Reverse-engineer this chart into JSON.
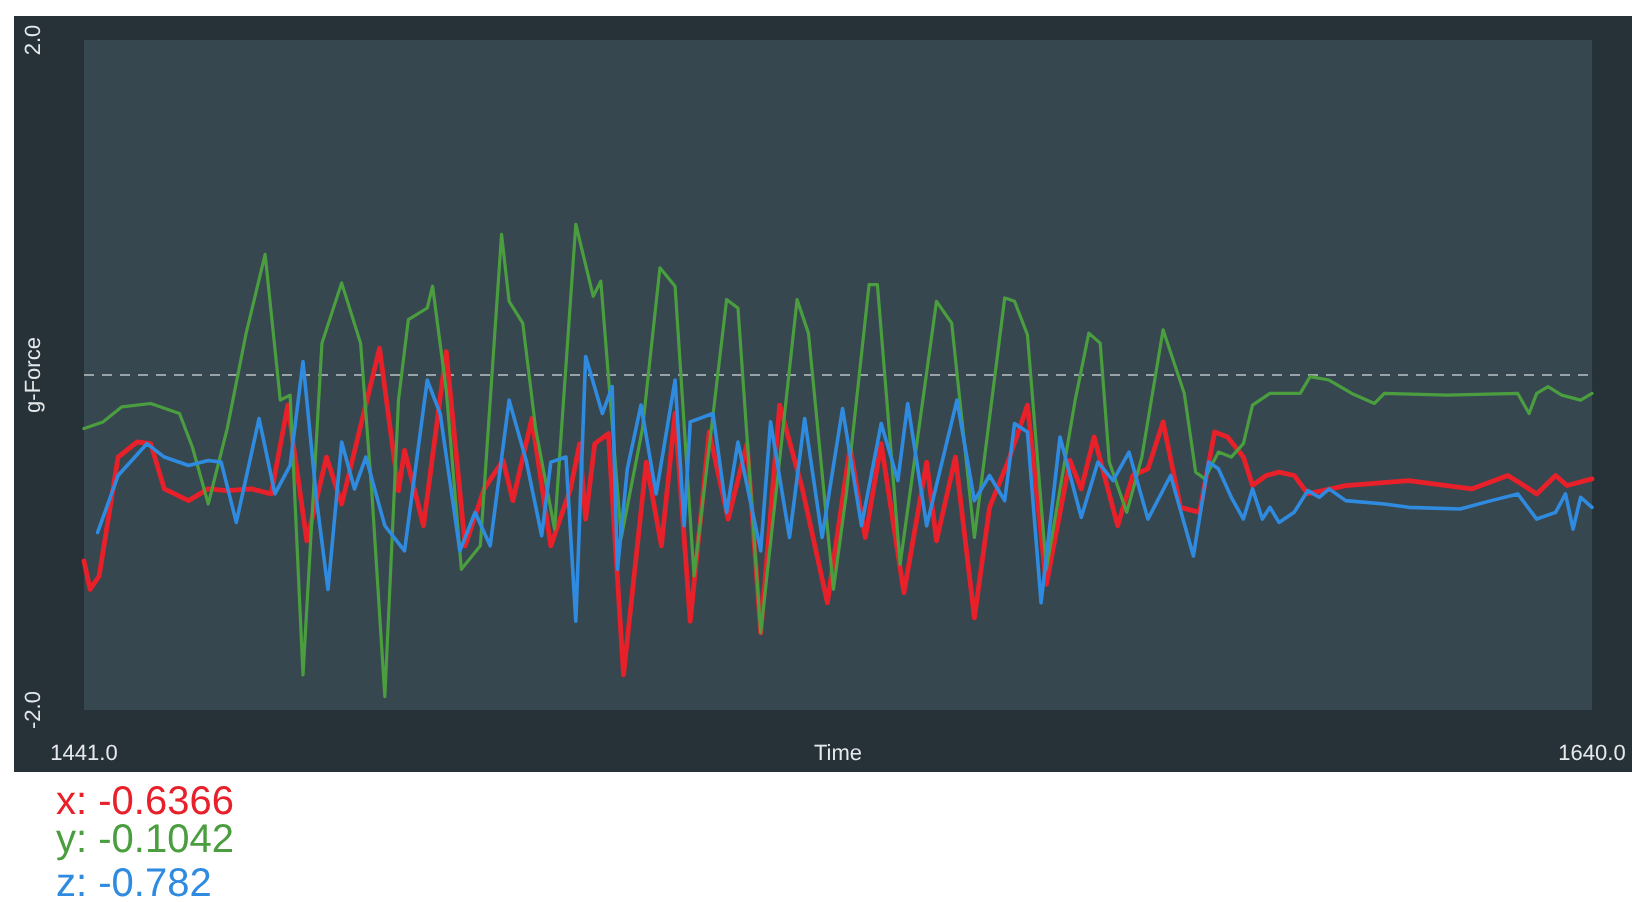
{
  "chart_data": {
    "type": "line",
    "xlabel": "Time",
    "ylabel": "g-Force",
    "xlim": [
      1441,
      1640
    ],
    "xticks": [
      {
        "value": 1441,
        "label": "1441.0"
      },
      {
        "value": 1640,
        "label": "1640.0"
      }
    ],
    "ylim": [
      -2,
      2
    ],
    "yticks": [
      {
        "value": 2,
        "label": "2.0"
      },
      {
        "value": -2,
        "label": "-2.0"
      }
    ],
    "grid": false,
    "legend": "bottom left",
    "marker": "none",
    "line_style": "solid",
    "ref_lines": [
      {
        "axis": "y",
        "value": 0,
        "color": "#9aa3a8",
        "line_style": "dashed"
      }
    ],
    "series": [
      {
        "name": "x: -0.6366",
        "color": "#e8202a",
        "x": [
          1441.0,
          1441.8,
          1443.0,
          1445.5,
          1448.0,
          1449.8,
          1451.6,
          1454.8,
          1457.4,
          1459.9,
          1463.1,
          1465.7,
          1467.9,
          1470.4,
          1473.0,
          1475.0,
          1480.0,
          1482.5,
          1483.3,
          1485.8,
          1488.8,
          1491.3,
          1493.8,
          1496.3,
          1497.6,
          1500.1,
          1502.6,
          1505.2,
          1506.4,
          1507.2,
          1508.4,
          1510.2,
          1512.2,
          1515.2,
          1517.2,
          1519.0,
          1521.0,
          1523.5,
          1526.0,
          1528.5,
          1530.3,
          1532.8,
          1535.8,
          1539.1,
          1542.1,
          1544.1,
          1546.2,
          1549.2,
          1552.2,
          1553.5,
          1556.0,
          1558.5,
          1560.5,
          1563.0,
          1565.5,
          1568.0,
          1571.1,
          1572.6,
          1574.3,
          1577.4,
          1579.4,
          1581.4,
          1583.4,
          1585.7,
          1588.2,
          1590.2,
          1591.9,
          1594.0,
          1595.2,
          1597.0,
          1598.7,
          1600.7,
          1602.5,
          1607.5,
          1615.8,
          1624.1,
          1628.9,
          1631.7,
          1632.7,
          1635.2,
          1636.7,
          1640.0
        ],
        "values": [
          -1.11,
          -1.28,
          -1.2,
          -0.49,
          -0.4,
          -0.41,
          -0.68,
          -0.75,
          -0.68,
          -0.69,
          -0.68,
          -0.71,
          -0.18,
          -0.99,
          -0.49,
          -0.77,
          0.16,
          -0.69,
          -0.45,
          -0.9,
          0.14,
          -1.02,
          -0.68,
          -0.51,
          -0.75,
          -0.26,
          -1.02,
          -0.68,
          -0.41,
          -0.86,
          -0.41,
          -0.35,
          -1.79,
          -0.52,
          -1.02,
          -0.23,
          -1.47,
          -0.34,
          -0.86,
          -0.41,
          -1.54,
          -0.18,
          -0.68,
          -1.36,
          -0.43,
          -0.97,
          -0.41,
          -1.3,
          -0.52,
          -0.99,
          -0.49,
          -1.45,
          -0.79,
          -0.51,
          -0.18,
          -1.25,
          -0.51,
          -0.68,
          -0.37,
          -0.9,
          -0.6,
          -0.56,
          -0.28,
          -0.79,
          -0.82,
          -0.34,
          -0.37,
          -0.49,
          -0.66,
          -0.6,
          -0.58,
          -0.6,
          -0.71,
          -0.66,
          -0.63,
          -0.68,
          -0.6,
          -0.68,
          -0.71,
          -0.6,
          -0.66,
          -0.62
        ]
      },
      {
        "name": "y: -0.1042",
        "color": "#4a9e3f",
        "x": [
          1441.0,
          1443.5,
          1446.0,
          1449.8,
          1453.6,
          1455.3,
          1457.4,
          1459.9,
          1462.4,
          1464.9,
          1466.9,
          1468.2,
          1469.9,
          1472.4,
          1475.0,
          1477.5,
          1479.0,
          1480.7,
          1482.5,
          1483.8,
          1486.3,
          1487.0,
          1488.8,
          1490.8,
          1493.3,
          1496.1,
          1497.1,
          1498.9,
          1500.6,
          1503.1,
          1505.9,
          1508.2,
          1509.2,
          1511.9,
          1514.7,
          1517.0,
          1519.0,
          1521.5,
          1525.8,
          1527.3,
          1530.3,
          1535.1,
          1536.6,
          1539.9,
          1541.6,
          1544.6,
          1545.7,
          1548.7,
          1553.5,
          1555.5,
          1558.5,
          1562.5,
          1563.8,
          1565.5,
          1568.0,
          1571.8,
          1573.6,
          1575.1,
          1576.3,
          1578.6,
          1580.6,
          1583.4,
          1586.2,
          1587.7,
          1588.9,
          1590.7,
          1592.4,
          1594.0,
          1595.2,
          1597.5,
          1601.5,
          1602.8,
          1605.3,
          1608.3,
          1611.3,
          1612.6,
          1620.9,
          1630.2,
          1631.7,
          1632.7,
          1634.2,
          1636.0,
          1638.5,
          1640.0
        ],
        "values": [
          -0.32,
          -0.28,
          -0.19,
          -0.17,
          -0.23,
          -0.43,
          -0.77,
          -0.32,
          0.25,
          0.72,
          -0.15,
          -0.12,
          -1.79,
          0.19,
          0.55,
          0.19,
          -0.71,
          -1.92,
          -0.15,
          0.33,
          0.4,
          0.53,
          -0.09,
          -1.16,
          -1.02,
          0.84,
          0.44,
          0.31,
          -0.32,
          -0.92,
          0.9,
          0.47,
          0.56,
          -0.97,
          -0.32,
          0.64,
          0.53,
          -1.2,
          0.45,
          0.4,
          -1.54,
          0.45,
          0.25,
          -1.28,
          -0.71,
          0.54,
          0.54,
          -1.13,
          0.44,
          0.31,
          -0.97,
          0.46,
          0.44,
          0.24,
          -1.16,
          -0.15,
          0.25,
          0.19,
          -0.52,
          -0.82,
          -0.49,
          0.27,
          -0.11,
          -0.58,
          -0.62,
          -0.46,
          -0.49,
          -0.41,
          -0.18,
          -0.11,
          -0.11,
          -0.01,
          -0.03,
          -0.11,
          -0.17,
          -0.11,
          -0.12,
          -0.11,
          -0.23,
          -0.11,
          -0.07,
          -0.12,
          -0.15,
          -0.11
        ]
      },
      {
        "name": "z: -0.782",
        "color": "#2f8be0",
        "x": [
          1442.8,
          1445.5,
          1449.3,
          1451.6,
          1454.8,
          1457.4,
          1459.1,
          1461.1,
          1464.1,
          1466.2,
          1468.2,
          1469.9,
          1471.7,
          1473.2,
          1475.0,
          1476.7,
          1478.2,
          1480.7,
          1483.3,
          1486.3,
          1488.0,
          1490.6,
          1492.6,
          1494.6,
          1497.1,
          1499.4,
          1501.4,
          1502.6,
          1504.6,
          1505.9,
          1507.2,
          1509.4,
          1510.7,
          1511.4,
          1512.7,
          1514.5,
          1516.5,
          1519.0,
          1520.2,
          1521.0,
          1524.0,
          1525.8,
          1527.3,
          1530.3,
          1531.6,
          1534.1,
          1536.1,
          1538.4,
          1541.1,
          1543.6,
          1546.2,
          1548.4,
          1549.7,
          1552.2,
          1556.2,
          1558.5,
          1560.5,
          1562.5,
          1563.8,
          1565.5,
          1567.3,
          1569.8,
          1572.6,
          1574.8,
          1576.8,
          1578.9,
          1581.4,
          1584.4,
          1587.4,
          1589.4,
          1590.7,
          1592.4,
          1594.0,
          1595.2,
          1596.5,
          1597.5,
          1598.7,
          1600.7,
          1602.5,
          1604.0,
          1605.3,
          1607.5,
          1612.6,
          1615.8,
          1622.6,
          1626.7,
          1630.2,
          1632.7,
          1635.2,
          1636.5,
          1637.5,
          1638.5,
          1640.0
        ],
        "values": [
          -0.94,
          -0.6,
          -0.41,
          -0.49,
          -0.54,
          -0.51,
          -0.52,
          -0.88,
          -0.26,
          -0.71,
          -0.54,
          0.08,
          -0.75,
          -1.28,
          -0.4,
          -0.68,
          -0.49,
          -0.9,
          -1.05,
          -0.03,
          -0.23,
          -1.05,
          -0.82,
          -1.02,
          -0.15,
          -0.52,
          -0.96,
          -0.52,
          -0.49,
          -1.47,
          0.11,
          -0.23,
          -0.07,
          -1.16,
          -0.56,
          -0.18,
          -0.71,
          -0.03,
          -0.9,
          -0.28,
          -0.23,
          -0.82,
          -0.4,
          -1.05,
          -0.28,
          -0.97,
          -0.26,
          -0.97,
          -0.2,
          -0.9,
          -0.29,
          -0.63,
          -0.17,
          -0.9,
          -0.15,
          -0.75,
          -0.6,
          -0.75,
          -0.29,
          -0.34,
          -1.36,
          -0.37,
          -0.85,
          -0.52,
          -0.63,
          -0.46,
          -0.86,
          -0.6,
          -1.08,
          -0.52,
          -0.56,
          -0.73,
          -0.86,
          -0.68,
          -0.86,
          -0.79,
          -0.88,
          -0.82,
          -0.69,
          -0.73,
          -0.68,
          -0.75,
          -0.77,
          -0.79,
          -0.8,
          -0.75,
          -0.71,
          -0.86,
          -0.82,
          -0.71,
          -0.92,
          -0.73,
          -0.79
        ]
      }
    ]
  }
}
